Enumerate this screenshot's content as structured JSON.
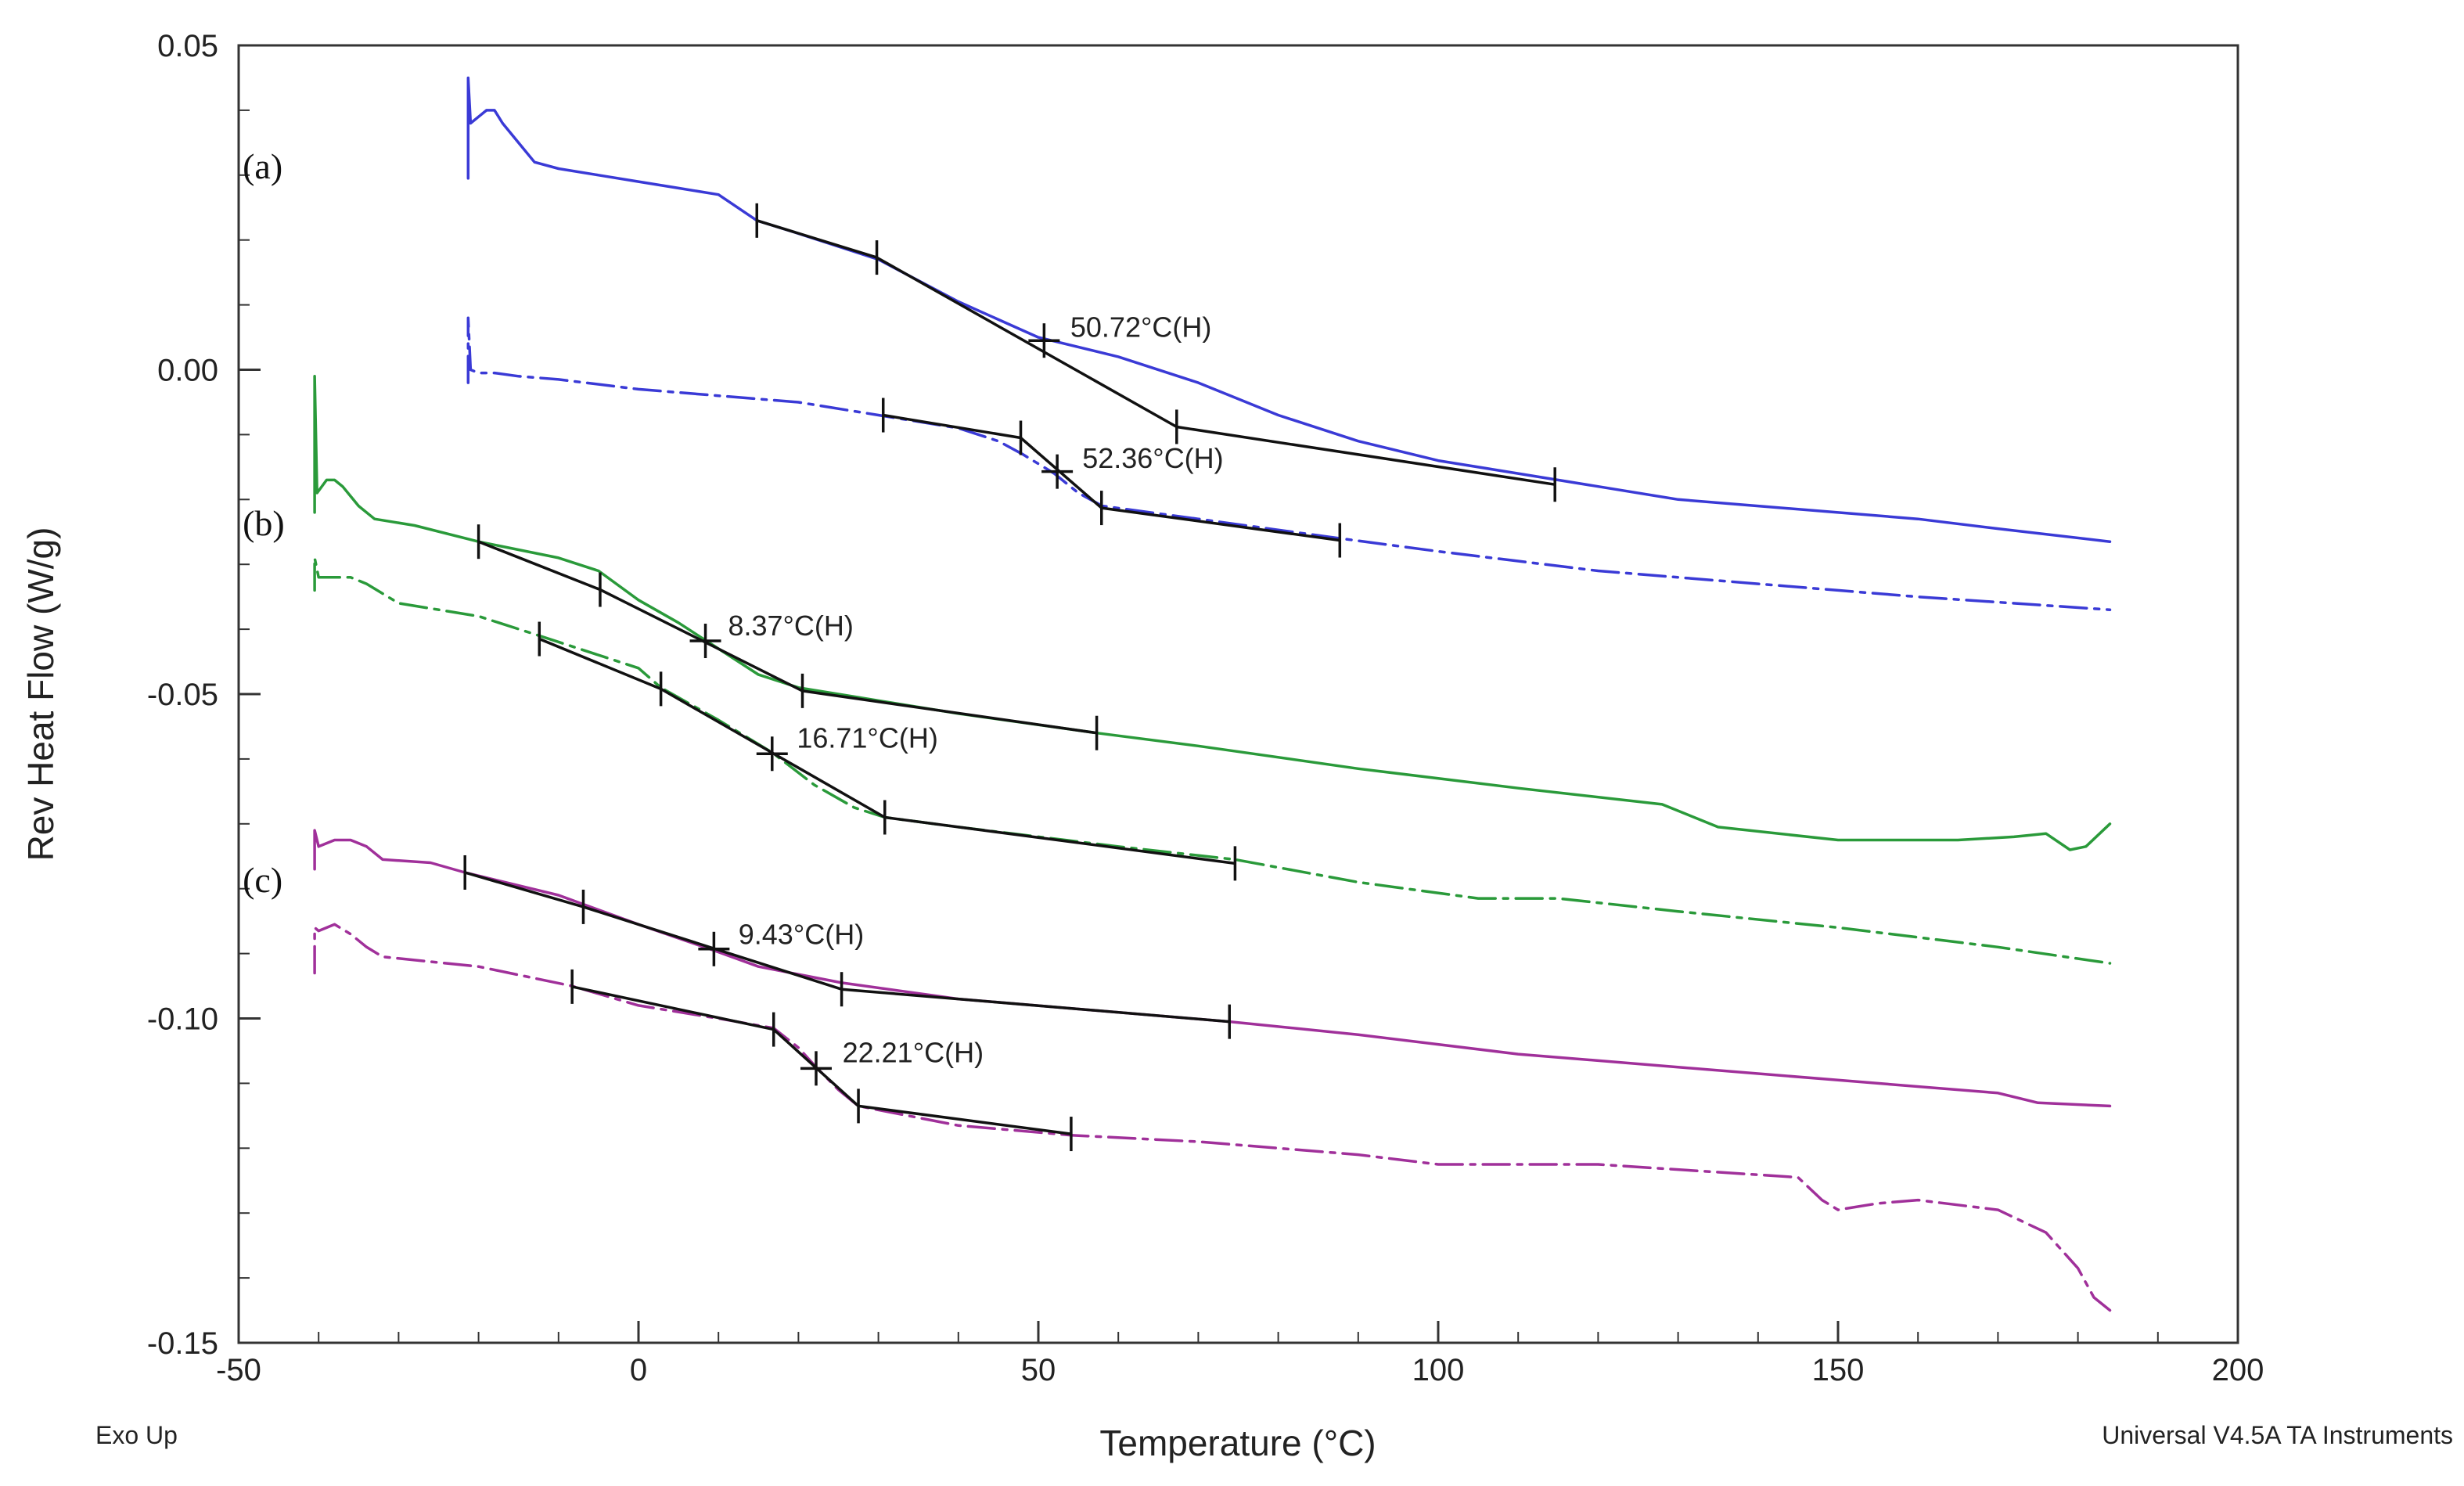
{
  "chart_data": {
    "type": "line",
    "xlabel": "Temperature (°C)",
    "ylabel": "Rev Heat Flow (W/g)",
    "xlim": [
      -50,
      200
    ],
    "ylim": [
      -0.15,
      0.05
    ],
    "xticks": [
      -50,
      0,
      50,
      100,
      150,
      200
    ],
    "xtick_labels": [
      "-50",
      "0",
      "50",
      "100",
      "150",
      "200"
    ],
    "yticks": [
      0.05,
      0.0,
      -0.05,
      -0.1,
      -0.15
    ],
    "ytick_labels": [
      "0.05",
      "0.00",
      "-0.05",
      "-0.10",
      "-0.15"
    ],
    "legend": "none",
    "footer_left": "Exo Up",
    "footer_right": "Universal V4.5A TA Instruments",
    "panel_labels": [
      {
        "label": "(a)",
        "x": -49.5,
        "y": 0.0295
      },
      {
        "label": "(b)",
        "x": -49.5,
        "y": -0.0255
      },
      {
        "label": "(c)",
        "x": -49.5,
        "y": -0.0805
      }
    ],
    "series": [
      {
        "name": "(a) solid",
        "color": "#3a3ad6",
        "style": "solid",
        "points": [
          [
            -21.3,
            0.0295
          ],
          [
            -21.3,
            0.045
          ],
          [
            -21.0,
            0.038
          ],
          [
            -20,
            0.039
          ],
          [
            -19,
            0.04
          ],
          [
            -18,
            0.04
          ],
          [
            -17,
            0.038
          ],
          [
            -15,
            0.035
          ],
          [
            -13,
            0.032
          ],
          [
            -10,
            0.031
          ],
          [
            -5,
            0.03
          ],
          [
            0,
            0.029
          ],
          [
            5,
            0.028
          ],
          [
            10,
            0.027
          ],
          [
            14.8,
            0.023
          ],
          [
            20,
            0.021
          ],
          [
            30,
            0.017
          ],
          [
            40,
            0.0105
          ],
          [
            50,
            0.005
          ],
          [
            60,
            0.002
          ],
          [
            70,
            -0.002
          ],
          [
            80,
            -0.007
          ],
          [
            90,
            -0.011
          ],
          [
            100,
            -0.014
          ],
          [
            110,
            -0.016
          ],
          [
            120,
            -0.018
          ],
          [
            130,
            -0.02
          ],
          [
            140,
            -0.021
          ],
          [
            150,
            -0.022
          ],
          [
            160,
            -0.023
          ],
          [
            170,
            -0.0245
          ],
          [
            184,
            -0.0265
          ]
        ]
      },
      {
        "name": "(a) dash-dot",
        "color": "#3a3ad6",
        "style": "dashdot",
        "points": [
          [
            -21.3,
            -0.002
          ],
          [
            -21.3,
            0.008
          ],
          [
            -21.0,
            0.0
          ],
          [
            -20,
            -0.0005
          ],
          [
            -18,
            -0.0005
          ],
          [
            -15,
            -0.001
          ],
          [
            -10,
            -0.0015
          ],
          [
            0,
            -0.003
          ],
          [
            10,
            -0.004
          ],
          [
            20,
            -0.005
          ],
          [
            30,
            -0.007
          ],
          [
            40,
            -0.009
          ],
          [
            45,
            -0.011
          ],
          [
            48,
            -0.013
          ],
          [
            52,
            -0.016
          ],
          [
            55,
            -0.019
          ],
          [
            58,
            -0.021
          ],
          [
            70,
            -0.023
          ],
          [
            87.7,
            -0.026
          ],
          [
            100,
            -0.028
          ],
          [
            120,
            -0.031
          ],
          [
            140,
            -0.033
          ],
          [
            160,
            -0.035
          ],
          [
            184,
            -0.037
          ]
        ]
      },
      {
        "name": "(b) solid",
        "color": "#2a9a3a",
        "style": "solid",
        "points": [
          [
            -40.5,
            -0.022
          ],
          [
            -40.5,
            -0.001
          ],
          [
            -40.2,
            -0.019
          ],
          [
            -39,
            -0.017
          ],
          [
            -38,
            -0.017
          ],
          [
            -37,
            -0.018
          ],
          [
            -35,
            -0.021
          ],
          [
            -33,
            -0.023
          ],
          [
            -28,
            -0.024
          ],
          [
            -20,
            -0.0265
          ],
          [
            -10,
            -0.029
          ],
          [
            -5,
            -0.031
          ],
          [
            0,
            -0.0355
          ],
          [
            5,
            -0.039
          ],
          [
            10,
            -0.043
          ],
          [
            15,
            -0.047
          ],
          [
            20,
            -0.049
          ],
          [
            30,
            -0.051
          ],
          [
            40,
            -0.053
          ],
          [
            57.3,
            -0.056
          ],
          [
            70,
            -0.058
          ],
          [
            90,
            -0.0615
          ],
          [
            110,
            -0.0645
          ],
          [
            128,
            -0.067
          ],
          [
            135,
            -0.0705
          ],
          [
            150,
            -0.0725
          ],
          [
            165,
            -0.0725
          ],
          [
            172,
            -0.072
          ],
          [
            176,
            -0.0715
          ],
          [
            179,
            -0.074
          ],
          [
            181,
            -0.0735
          ],
          [
            184,
            -0.07
          ]
        ]
      },
      {
        "name": "(b) dash-dot",
        "color": "#2a9a3a",
        "style": "dashdot",
        "points": [
          [
            -40.5,
            -0.034
          ],
          [
            -40.5,
            -0.029
          ],
          [
            -40,
            -0.032
          ],
          [
            -38,
            -0.032
          ],
          [
            -36,
            -0.032
          ],
          [
            -34,
            -0.033
          ],
          [
            -30,
            -0.036
          ],
          [
            -20,
            -0.038
          ],
          [
            -12.4,
            -0.041
          ],
          [
            0,
            -0.046
          ],
          [
            2.8,
            -0.049
          ],
          [
            10,
            -0.054
          ],
          [
            16.7,
            -0.059
          ],
          [
            22,
            -0.064
          ],
          [
            27,
            -0.0675
          ],
          [
            30.8,
            -0.069
          ],
          [
            40,
            -0.0705
          ],
          [
            60,
            -0.0735
          ],
          [
            74.6,
            -0.0755
          ],
          [
            90,
            -0.079
          ],
          [
            105,
            -0.0815
          ],
          [
            115,
            -0.0815
          ],
          [
            130,
            -0.0835
          ],
          [
            150,
            -0.086
          ],
          [
            170,
            -0.089
          ],
          [
            184,
            -0.0915
          ]
        ]
      },
      {
        "name": "(c) solid",
        "color": "#a0309a",
        "style": "solid",
        "points": [
          [
            -40.5,
            -0.077
          ],
          [
            -40.5,
            -0.071
          ],
          [
            -40,
            -0.0735
          ],
          [
            -38,
            -0.0725
          ],
          [
            -36,
            -0.0725
          ],
          [
            -34,
            -0.0735
          ],
          [
            -32,
            -0.0755
          ],
          [
            -26,
            -0.076
          ],
          [
            -21.7,
            -0.0775
          ],
          [
            -10,
            -0.081
          ],
          [
            0,
            -0.0855
          ],
          [
            9.4,
            -0.0895
          ],
          [
            15,
            -0.092
          ],
          [
            25.4,
            -0.0945
          ],
          [
            40,
            -0.097
          ],
          [
            73.9,
            -0.1005
          ],
          [
            90,
            -0.1025
          ],
          [
            110,
            -0.1055
          ],
          [
            130,
            -0.1075
          ],
          [
            150,
            -0.1095
          ],
          [
            170,
            -0.1115
          ],
          [
            175,
            -0.113
          ],
          [
            184,
            -0.1135
          ]
        ]
      },
      {
        "name": "(c) dash-dot",
        "color": "#a0309a",
        "style": "dashdot",
        "points": [
          [
            -40.5,
            -0.093
          ],
          [
            -40.5,
            -0.086
          ],
          [
            -40,
            -0.0865
          ],
          [
            -38,
            -0.0855
          ],
          [
            -36,
            -0.087
          ],
          [
            -34,
            -0.089
          ],
          [
            -32,
            -0.0905
          ],
          [
            -20,
            -0.092
          ],
          [
            -8.3,
            -0.095
          ],
          [
            0,
            -0.098
          ],
          [
            10,
            -0.1
          ],
          [
            16.9,
            -0.1015
          ],
          [
            20,
            -0.1045
          ],
          [
            22.2,
            -0.1075
          ],
          [
            25,
            -0.111
          ],
          [
            27.5,
            -0.1135
          ],
          [
            40,
            -0.1165
          ],
          [
            54.1,
            -0.118
          ],
          [
            70,
            -0.119
          ],
          [
            90,
            -0.121
          ],
          [
            100,
            -0.1225
          ],
          [
            120,
            -0.1225
          ],
          [
            145,
            -0.1245
          ],
          [
            148,
            -0.128
          ],
          [
            150,
            -0.1295
          ],
          [
            155,
            -0.1285
          ],
          [
            160,
            -0.128
          ],
          [
            170,
            -0.1295
          ],
          [
            176,
            -0.133
          ],
          [
            180,
            -0.1385
          ],
          [
            182,
            -0.143
          ],
          [
            184,
            -0.145
          ]
        ]
      }
    ],
    "fit_lines": [
      {
        "name": "(a) solid tangent",
        "points": [
          [
            14.8,
            0.023
          ],
          [
            29.8,
            0.0173
          ],
          [
            67.3,
            -0.0088
          ],
          [
            114.6,
            -0.0177
          ]
        ],
        "ticks": [
          [
            14.8,
            0.023
          ],
          [
            29.8,
            0.0173
          ],
          [
            67.3,
            -0.0088
          ],
          [
            114.6,
            -0.0177
          ]
        ]
      },
      {
        "name": "(a) dash-dot tangent",
        "points": [
          [
            30.6,
            -0.007
          ],
          [
            47.8,
            -0.0105
          ],
          [
            57.9,
            -0.0213
          ],
          [
            87.7,
            -0.0263
          ]
        ],
        "ticks": [
          [
            30.6,
            -0.007
          ],
          [
            47.8,
            -0.0105
          ],
          [
            57.9,
            -0.0213
          ],
          [
            87.7,
            -0.0263
          ]
        ]
      },
      {
        "name": "(b) solid tangent",
        "points": [
          [
            -20,
            -0.0265
          ],
          [
            -4.8,
            -0.0339
          ],
          [
            20.5,
            -0.0495
          ],
          [
            57.3,
            -0.056
          ]
        ],
        "ticks": [
          [
            -20,
            -0.0265
          ],
          [
            -4.8,
            -0.0339
          ],
          [
            20.5,
            -0.0495
          ],
          [
            57.3,
            -0.056
          ]
        ]
      },
      {
        "name": "(b) dash-dot tangent",
        "points": [
          [
            -12.4,
            -0.0415
          ],
          [
            2.8,
            -0.0492
          ],
          [
            30.8,
            -0.069
          ],
          [
            74.6,
            -0.0761
          ]
        ],
        "ticks": [
          [
            -12.4,
            -0.0415
          ],
          [
            2.8,
            -0.0492
          ],
          [
            30.8,
            -0.069
          ],
          [
            74.6,
            -0.0761
          ]
        ]
      },
      {
        "name": "(c) solid tangent",
        "points": [
          [
            -21.7,
            -0.0775
          ],
          [
            -6.9,
            -0.0828
          ],
          [
            25.4,
            -0.0955
          ],
          [
            73.9,
            -0.1005
          ]
        ],
        "ticks": [
          [
            -21.7,
            -0.0775
          ],
          [
            -6.9,
            -0.0828
          ],
          [
            25.4,
            -0.0955
          ],
          [
            73.9,
            -0.1005
          ]
        ]
      },
      {
        "name": "(c) dash-dot tangent",
        "points": [
          [
            -8.3,
            -0.0951
          ],
          [
            16.9,
            -0.1017
          ],
          [
            27.5,
            -0.1135
          ],
          [
            54.1,
            -0.1178
          ]
        ],
        "ticks": [
          [
            -8.3,
            -0.0951
          ],
          [
            16.9,
            -0.1017
          ],
          [
            27.5,
            -0.1135
          ],
          [
            54.1,
            -0.1178
          ]
        ]
      }
    ],
    "annotations": [
      {
        "label": "50.72°C(H)",
        "x": 50.72,
        "y": 0.0045,
        "tx": 54,
        "ty": 0.0065
      },
      {
        "label": "52.36°C(H)",
        "x": 52.36,
        "y": -0.0157,
        "tx": 55.5,
        "ty": -0.0137
      },
      {
        "label": "8.37°C(H)",
        "x": 8.37,
        "y": -0.0418,
        "tx": 11.2,
        "ty": -0.0395
      },
      {
        "label": "16.71°C(H)",
        "x": 16.71,
        "y": -0.0592,
        "tx": 19.8,
        "ty": -0.0568
      },
      {
        "label": "9.43°C(H)",
        "x": 9.43,
        "y": -0.0893,
        "tx": 12.5,
        "ty": -0.0871
      },
      {
        "label": "22.21°C(H)",
        "x": 22.21,
        "y": -0.1077,
        "tx": 25.5,
        "ty": -0.1053
      }
    ]
  }
}
